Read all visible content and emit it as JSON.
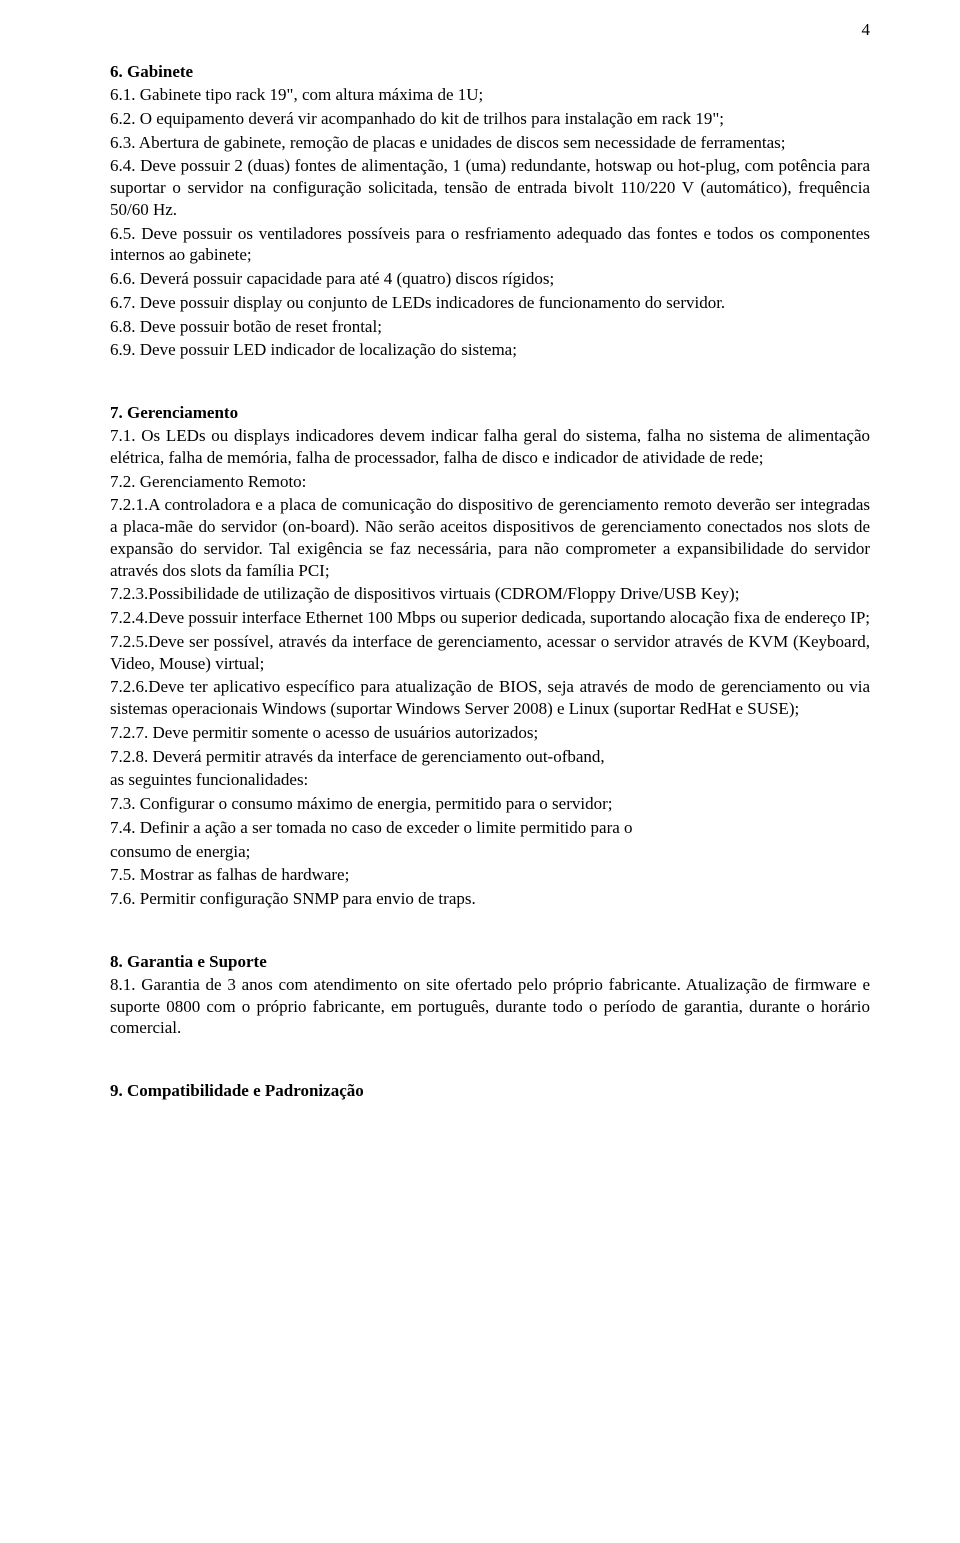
{
  "page_number": "4",
  "sections": {
    "s6": {
      "heading": "6. Gabinete",
      "items": [
        "6.1. Gabinete tipo rack 19\", com altura máxima de 1U;",
        "6.2. O equipamento deverá vir acompanhado do kit de trilhos para instalação em rack 19\";",
        "6.3. Abertura de gabinete, remoção de placas e unidades de discos sem necessidade de ferramentas;",
        "6.4. Deve possuir 2 (duas) fontes de alimentação, 1 (uma) redundante, hotswap ou hot-plug, com potência para suportar o servidor na configuração solicitada, tensão de entrada bivolt 110/220 V (automático), frequência 50/60 Hz.",
        "6.5. Deve possuir os ventiladores possíveis para o resfriamento adequado das fontes e todos os componentes internos ao gabinete;",
        "6.6. Deverá possuir capacidade para até 4 (quatro) discos rígidos;",
        "6.7. Deve possuir display ou conjunto de LEDs indicadores de funcionamento do servidor.",
        "6.8. Deve possuir botão de reset frontal;",
        "6.9. Deve possuir LED indicador de localização do sistema;"
      ]
    },
    "s7": {
      "heading": "7. Gerenciamento",
      "items": [
        "7.1. Os LEDs ou displays indicadores devem indicar falha geral do sistema, falha no sistema de alimentação elétrica, falha de memória, falha de processador, falha de disco e indicador de atividade de rede;",
        "7.2. Gerenciamento Remoto:",
        "7.2.1.A controladora e a placa de comunicação do dispositivo de gerenciamento remoto deverão ser integradas a placa-mãe do servidor (on-board). Não serão aceitos dispositivos de gerenciamento conectados nos slots de expansão do servidor. Tal exigência se faz necessária, para não comprometer a expansibilidade do servidor através dos slots da família PCI;",
        "7.2.3.Possibilidade de utilização de dispositivos virtuais (CDROM/Floppy Drive/USB Key);",
        "7.2.4.Deve possuir interface Ethernet 100 Mbps ou superior dedicada, suportando alocação fixa de endereço IP;",
        "7.2.5.Deve ser possível, através da interface de gerenciamento, acessar o servidor através de KVM (Keyboard, Video, Mouse) virtual;",
        "7.2.6.Deve ter aplicativo específico para atualização de BIOS, seja através de modo de gerenciamento ou via sistemas operacionais Windows (suportar Windows Server 2008) e Linux (suportar RedHat e SUSE);",
        "7.2.7. Deve permitir somente o acesso de usuários autorizados;",
        "7.2.8. Deverá permitir através da interface de gerenciamento out-ofband,",
        "as seguintes funcionalidades:",
        "7.3. Configurar o consumo máximo de energia, permitido para o servidor;",
        "7.4. Definir a ação a ser tomada no caso de exceder o limite permitido para o",
        "consumo de energia;",
        "7.5. Mostrar as falhas de hardware;",
        "7.6. Permitir configuração SNMP para envio de traps."
      ]
    },
    "s8": {
      "heading": "8. Garantia e Suporte",
      "items": [
        "8.1. Garantia de 3 anos com atendimento on site ofertado pelo próprio fabricante. Atualização de firmware e suporte 0800 com o próprio fabricante, em português, durante todo o período de garantia, durante o horário comercial."
      ]
    },
    "s9": {
      "heading": "9. Compatibilidade e Padronização"
    }
  }
}
